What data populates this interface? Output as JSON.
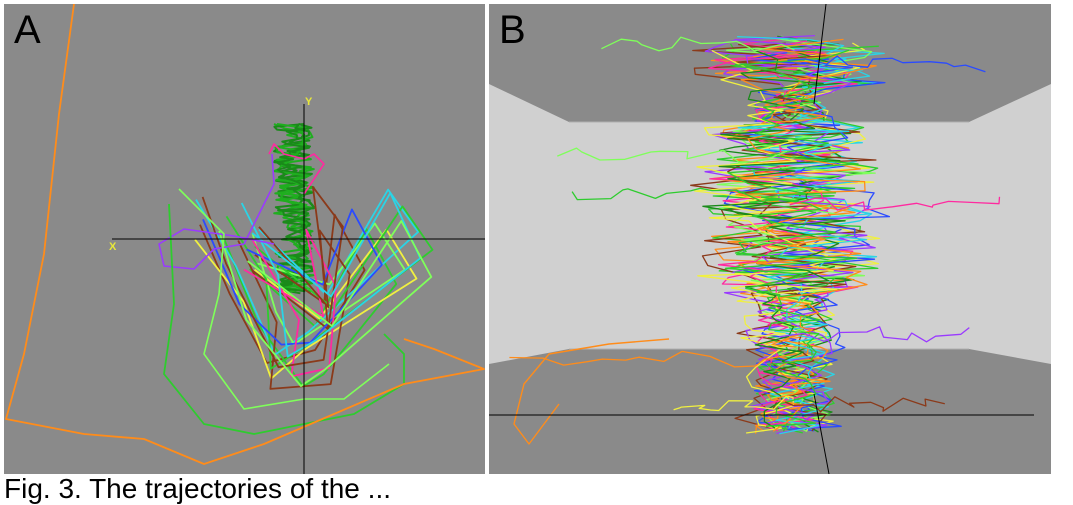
{
  "panels": [
    {
      "label": "A",
      "x_axis_letter": "X",
      "y_axis_letter": "Y"
    },
    {
      "label": "B"
    }
  ],
  "caption": "Fig. 3. The trajectories of the ...",
  "colors": {
    "background": "#8a8a8a",
    "floor": "#8a8a8a",
    "wall": "#d0d0d0",
    "axis": "#000000",
    "axis_label": "#e8e83a",
    "trajectories": [
      "#ff8c1a",
      "#2ecc2e",
      "#7fff5a",
      "#8b3a1a",
      "#2a4bff",
      "#ff2aa0",
      "#9a3aff",
      "#2ad4e6",
      "#f0f040",
      "#1a8a1a"
    ]
  }
}
